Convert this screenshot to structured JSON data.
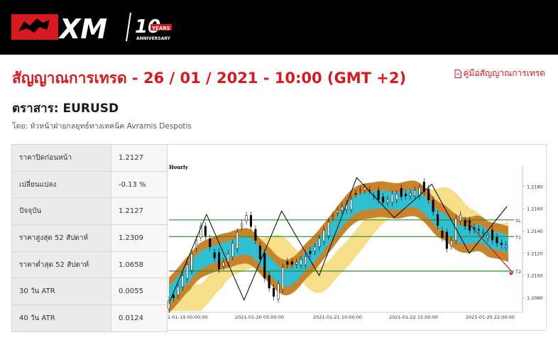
{
  "header": {
    "brand": "XM",
    "badge": "10 YEARS ANNIVERSARY"
  },
  "page": {
    "title": "สัญญาณการเทรด - 26 / 01 / 2021 - 10:00 (GMT +2)",
    "guide_link": "คู่มือสัญญาณการเทรด",
    "instrument": "ตราสาร: EURUSD",
    "author": "โดย: หัวหน้าฝ่ายกลยุทธ์ทางเทคนิค Avramis Despotis"
  },
  "stats": [
    {
      "label": "ราคาปิดก่อนหน้า",
      "value": "1.2127"
    },
    {
      "label": "เปลี่ยนแปลง",
      "value": "-0.13 %"
    },
    {
      "label": "ปัจจุบัน",
      "value": "1.2127"
    },
    {
      "label": "ราคาสูงสุด 52 สัปดาห์",
      "value": "1.2309"
    },
    {
      "label": "ราคาต่ำสุด 52 สัปดาห์",
      "value": "1.0658"
    },
    {
      "label": "30 วัน ATR",
      "value": "0.0055"
    },
    {
      "label": "40 วัน ATR",
      "value": "0.0124"
    }
  ],
  "colors": {
    "brand_red": "#d71920",
    "band_outer": "#c8842c",
    "band_inner": "#2fbfd0",
    "band_yellow": "#f5df8a",
    "level_lines": "#2e8b2e",
    "forecast_arrow": "#c41e1e"
  },
  "chart_data": {
    "type": "candlestick",
    "timeframe_label": "Hourly",
    "x_tick_labels": [
      "1-01-19 00:00:00",
      "2021-01-20 05:00:00",
      "2021-01-21 10:00:00",
      "2021-01-22 15:00:00",
      "2021-01-25 22:00:00"
    ],
    "y_ticks": [
      "1.2180",
      "1.2160",
      "1.2140",
      "1.2120",
      "1.2100",
      "1.2080"
    ],
    "ylim": [
      1.2072,
      1.2192
    ],
    "levels": [
      {
        "name": "SL",
        "value": 1.215
      },
      {
        "name": "T1",
        "value": 1.2135
      },
      {
        "name": "T2",
        "value": 1.2104
      }
    ],
    "price_path": [
      1.2075,
      1.208,
      1.21,
      1.212,
      1.2145,
      1.2125,
      1.2105,
      1.212,
      1.214,
      1.2155,
      1.213,
      1.2095,
      1.208,
      1.211,
      1.211,
      1.2115,
      1.212,
      1.2135,
      1.215,
      1.216,
      1.2165,
      1.2175,
      1.218,
      1.217,
      1.2165,
      1.2175,
      1.217,
      1.2175,
      1.218,
      1.2165,
      1.214,
      1.212,
      1.216,
      1.214,
      1.2142,
      1.2138,
      1.213,
      1.2127
    ],
    "zigzag": [
      1.2075,
      1.2155,
      1.2078,
      1.2158,
      1.21,
      1.2188,
      1.2152,
      1.2182,
      1.212,
      1.2162
    ],
    "forecast": {
      "from": 1.215,
      "to": 1.2102
    }
  }
}
